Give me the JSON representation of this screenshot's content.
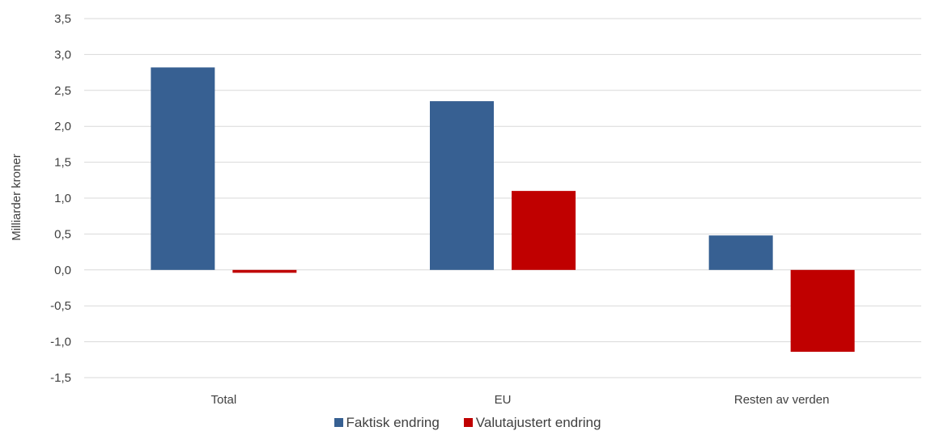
{
  "chart_data": {
    "type": "bar",
    "categories": [
      "Total",
      "EU",
      "Resten av verden"
    ],
    "series": [
      {
        "name": "Faktisk endring",
        "color": "#376092",
        "values": [
          2.82,
          2.35,
          0.48
        ]
      },
      {
        "name": "Valutajustert endring",
        "color": "#c00000",
        "values": [
          -0.04,
          1.1,
          -1.14
        ]
      }
    ],
    "ylabel": "Milliarder kroner",
    "xlabel": "",
    "ylim": [
      -1.5,
      3.5
    ],
    "yticks": [
      "3,5",
      "3,0",
      "2,5",
      "2,0",
      "1,5",
      "1,0",
      "0,5",
      "0,0",
      "-0,5",
      "-1,0",
      "-1,5"
    ],
    "grid": true,
    "legend_position": "bottom"
  }
}
